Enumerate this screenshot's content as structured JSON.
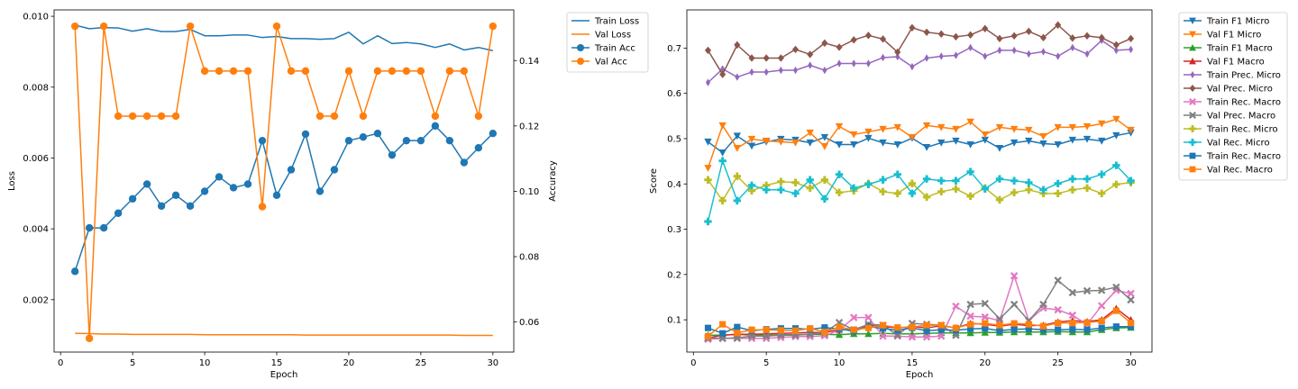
{
  "chart_data": [
    {
      "type": "line",
      "xlabel": "Epoch",
      "ylabel": "Loss",
      "y2label": "Accuracy",
      "x": [
        1,
        2,
        3,
        4,
        5,
        6,
        7,
        8,
        9,
        10,
        11,
        12,
        13,
        14,
        15,
        16,
        17,
        18,
        19,
        20,
        21,
        22,
        23,
        24,
        25,
        26,
        27,
        28,
        29,
        30
      ],
      "xticks": [
        "0",
        "5",
        "10",
        "15",
        "20",
        "25",
        "30"
      ],
      "xlim": [
        -0.45,
        31.45
      ],
      "ylim": [
        0.00052,
        0.01018
      ],
      "yticks": [
        "0.002",
        "0.004",
        "0.006",
        "0.008",
        "0.010"
      ],
      "y2lim": [
        0.0508,
        0.1555
      ],
      "y2ticks": [
        "0.06",
        "0.08",
        "0.10",
        "0.12",
        "0.14"
      ],
      "legend_position": "outside-right",
      "series": [
        {
          "name": "Train Loss",
          "axis": "left",
          "marker": "none",
          "color": "#1f77b4",
          "values": [
            0.00975,
            0.00965,
            0.00968,
            0.00967,
            0.00958,
            0.00965,
            0.00957,
            0.00957,
            0.00963,
            0.00945,
            0.00945,
            0.00947,
            0.00947,
            0.0094,
            0.00943,
            0.00937,
            0.00937,
            0.00935,
            0.00937,
            0.00955,
            0.00922,
            0.00945,
            0.00923,
            0.00926,
            0.00922,
            0.00912,
            0.00922,
            0.00905,
            0.00912,
            0.00903
          ]
        },
        {
          "name": "Val Loss",
          "axis": "left",
          "marker": "none",
          "color": "#ff7f0e",
          "values": [
            0.00105,
            0.00104,
            0.00103,
            0.00103,
            0.00102,
            0.00102,
            0.00102,
            0.00102,
            0.00102,
            0.00101,
            0.00101,
            0.00101,
            0.00101,
            0.00101,
            0.00101,
            0.00101,
            0.001,
            0.001,
            0.001,
            0.001,
            0.001,
            0.001,
            0.001,
            0.001,
            0.001,
            0.001,
            0.001,
            0.00099,
            0.00099,
            0.00099
          ]
        },
        {
          "name": "Train Acc",
          "axis": "right",
          "marker": "o",
          "color": "#1f77b4",
          "values": [
            0.0755,
            0.0888,
            0.0888,
            0.0933,
            0.0977,
            0.1022,
            0.0955,
            0.0988,
            0.0955,
            0.1,
            0.1044,
            0.1011,
            0.1022,
            0.1155,
            0.0988,
            0.1066,
            0.1175,
            0.1,
            0.1066,
            0.1155,
            0.1166,
            0.1177,
            0.1111,
            0.1155,
            0.1155,
            0.12,
            0.1155,
            0.1088,
            0.1133,
            0.1177
          ]
        },
        {
          "name": "Val Acc",
          "axis": "right",
          "marker": "o",
          "color": "#ff7f0e",
          "values": [
            0.1505,
            0.055,
            0.1505,
            0.123,
            0.123,
            0.123,
            0.123,
            0.123,
            0.1505,
            0.1368,
            0.1368,
            0.1368,
            0.1368,
            0.0953,
            0.1505,
            0.1368,
            0.1368,
            0.123,
            0.123,
            0.1368,
            0.123,
            0.1368,
            0.1368,
            0.1368,
            0.1368,
            0.123,
            0.1368,
            0.1368,
            0.123,
            0.1505
          ]
        }
      ]
    },
    {
      "type": "line",
      "xlabel": "Epoch",
      "ylabel": "Score",
      "x": [
        1,
        2,
        3,
        4,
        5,
        6,
        7,
        8,
        9,
        10,
        11,
        12,
        13,
        14,
        15,
        16,
        17,
        18,
        19,
        20,
        21,
        22,
        23,
        24,
        25,
        26,
        27,
        28,
        29,
        30
      ],
      "xticks": [
        "0",
        "5",
        "10",
        "15",
        "20",
        "25",
        "30"
      ],
      "xlim": [
        -0.45,
        31.45
      ],
      "ylim": [
        0.0287,
        0.7843
      ],
      "yticks": [
        "0.1",
        "0.2",
        "0.3",
        "0.4",
        "0.5",
        "0.6",
        "0.7"
      ],
      "legend_position": "outside-right",
      "series": [
        {
          "name": "Train F1 Micro",
          "marker": "v",
          "color": "#1f77b4",
          "values": [
            0.493,
            0.469,
            0.506,
            0.484,
            0.493,
            0.499,
            0.497,
            0.491,
            0.503,
            0.487,
            0.487,
            0.501,
            0.491,
            0.487,
            0.501,
            0.481,
            0.491,
            0.495,
            0.487,
            0.497,
            0.479,
            0.491,
            0.495,
            0.489,
            0.487,
            0.497,
            0.499,
            0.495,
            0.507,
            0.513
          ]
        },
        {
          "name": "Val F1 Micro",
          "marker": "v",
          "color": "#ff7f0e",
          "values": [
            0.435,
            0.529,
            0.479,
            0.499,
            0.495,
            0.493,
            0.491,
            0.513,
            0.483,
            0.527,
            0.509,
            0.515,
            0.521,
            0.525,
            0.503,
            0.529,
            0.525,
            0.521,
            0.537,
            0.509,
            0.525,
            0.521,
            0.519,
            0.505,
            0.525,
            0.525,
            0.527,
            0.533,
            0.543,
            0.519
          ]
        },
        {
          "name": "Train F1 Macro",
          "marker": "^",
          "color": "#2ca02c",
          "values": [
            0.066,
            0.066,
            0.068,
            0.066,
            0.066,
            0.067,
            0.067,
            0.068,
            0.068,
            0.067,
            0.069,
            0.069,
            0.07,
            0.069,
            0.069,
            0.07,
            0.071,
            0.071,
            0.071,
            0.072,
            0.072,
            0.073,
            0.073,
            0.073,
            0.074,
            0.073,
            0.073,
            0.078,
            0.082,
            0.083
          ]
        },
        {
          "name": "Val F1 Macro",
          "marker": "^",
          "color": "#d62728",
          "values": [
            0.06,
            0.066,
            0.068,
            0.068,
            0.069,
            0.07,
            0.071,
            0.072,
            0.072,
            0.078,
            0.078,
            0.088,
            0.085,
            0.082,
            0.085,
            0.082,
            0.087,
            0.082,
            0.092,
            0.09,
            0.086,
            0.09,
            0.087,
            0.088,
            0.095,
            0.098,
            0.096,
            0.1,
            0.125,
            0.1
          ]
        },
        {
          "name": "Train Prec. Micro",
          "marker": "d",
          "color": "#9467bd",
          "values": [
            0.624,
            0.654,
            0.636,
            0.647,
            0.647,
            0.651,
            0.651,
            0.662,
            0.651,
            0.666,
            0.666,
            0.666,
            0.679,
            0.681,
            0.659,
            0.678,
            0.682,
            0.684,
            0.701,
            0.682,
            0.695,
            0.695,
            0.687,
            0.692,
            0.682,
            0.701,
            0.687,
            0.717,
            0.695,
            0.697
          ]
        },
        {
          "name": "Val Prec. Micro",
          "marker": "D",
          "color": "#8c564b",
          "values": [
            0.695,
            0.642,
            0.707,
            0.678,
            0.678,
            0.678,
            0.697,
            0.686,
            0.711,
            0.702,
            0.718,
            0.728,
            0.72,
            0.691,
            0.745,
            0.735,
            0.731,
            0.725,
            0.729,
            0.743,
            0.721,
            0.727,
            0.737,
            0.723,
            0.751,
            0.722,
            0.727,
            0.723,
            0.707,
            0.721
          ]
        },
        {
          "name": "Train Rec. Macro",
          "marker": "X",
          "color": "#e377c2",
          "values": [
            0.057,
            0.059,
            0.059,
            0.059,
            0.059,
            0.061,
            0.063,
            0.063,
            0.065,
            0.077,
            0.105,
            0.105,
            0.064,
            0.064,
            0.062,
            0.062,
            0.064,
            0.13,
            0.108,
            0.106,
            0.098,
            0.197,
            0.098,
            0.126,
            0.122,
            0.11,
            0.09,
            0.131,
            0.165,
            0.158
          ]
        },
        {
          "name": "Val Prec. Macro",
          "marker": "X",
          "color": "#7f7f7f",
          "values": [
            0.06,
            0.059,
            0.06,
            0.064,
            0.064,
            0.066,
            0.066,
            0.068,
            0.072,
            0.094,
            0.078,
            0.09,
            0.088,
            0.066,
            0.092,
            0.09,
            0.088,
            0.066,
            0.134,
            0.136,
            0.102,
            0.134,
            0.098,
            0.134,
            0.187,
            0.16,
            0.164,
            0.165,
            0.172,
            0.144
          ]
        },
        {
          "name": "Train Rec. Micro",
          "marker": "P",
          "color": "#bcbd22",
          "values": [
            0.409,
            0.363,
            0.417,
            0.385,
            0.397,
            0.405,
            0.403,
            0.391,
            0.409,
            0.381,
            0.385,
            0.401,
            0.383,
            0.379,
            0.401,
            0.371,
            0.383,
            0.389,
            0.373,
            0.391,
            0.365,
            0.381,
            0.387,
            0.379,
            0.379,
            0.387,
            0.391,
            0.379,
            0.399,
            0.403
          ]
        },
        {
          "name": "Val Rec. Micro",
          "marker": "P",
          "color": "#17becf",
          "values": [
            0.317,
            0.451,
            0.363,
            0.397,
            0.387,
            0.387,
            0.379,
            0.409,
            0.367,
            0.421,
            0.391,
            0.399,
            0.409,
            0.421,
            0.379,
            0.411,
            0.407,
            0.407,
            0.427,
            0.389,
            0.411,
            0.407,
            0.403,
            0.387,
            0.401,
            0.411,
            0.411,
            0.421,
            0.441,
            0.407
          ]
        },
        {
          "name": "Train Rec. Macro",
          "marker": "s",
          "color": "#1f77b4",
          "values": [
            0.082,
            0.07,
            0.084,
            0.076,
            0.079,
            0.081,
            0.081,
            0.079,
            0.083,
            0.08,
            0.075,
            0.085,
            0.081,
            0.077,
            0.082,
            0.076,
            0.078,
            0.077,
            0.08,
            0.081,
            0.076,
            0.079,
            0.08,
            0.078,
            0.078,
            0.079,
            0.078,
            0.082,
            0.085,
            0.085
          ]
        },
        {
          "name": "Val Rec. Macro",
          "marker": "s",
          "color": "#ff7f0e",
          "values": [
            0.064,
            0.09,
            0.071,
            0.078,
            0.078,
            0.077,
            0.076,
            0.081,
            0.073,
            0.084,
            0.078,
            0.082,
            0.088,
            0.083,
            0.084,
            0.088,
            0.088,
            0.082,
            0.09,
            0.092,
            0.088,
            0.092,
            0.09,
            0.086,
            0.093,
            0.093,
            0.094,
            0.097,
            0.12,
            0.093
          ]
        }
      ]
    }
  ]
}
